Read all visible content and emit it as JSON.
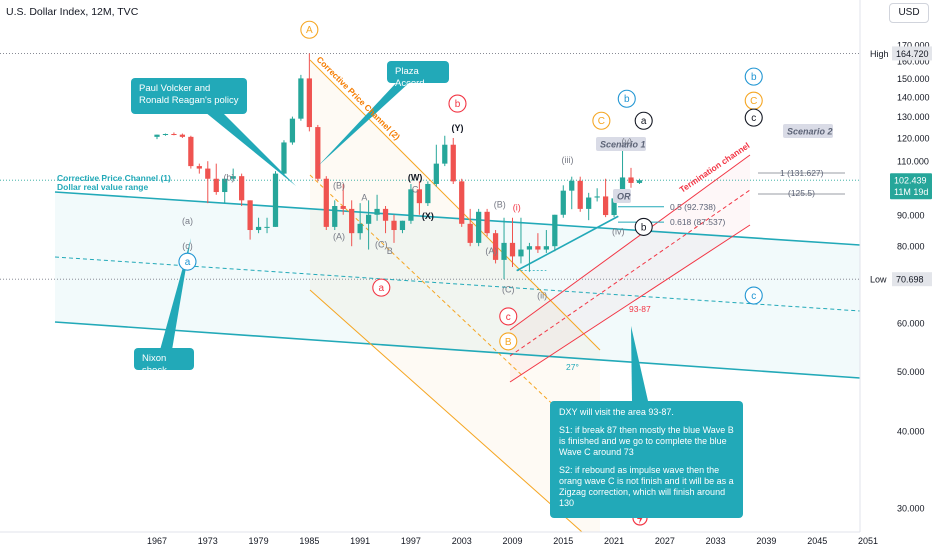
{
  "header": {
    "title": "U.S. Dollar Index, 12M, TVC"
  },
  "currency_button": "USD",
  "price_tags": {
    "high_label": "High",
    "high_value": "164.720",
    "last_value": "102.439",
    "countdown": "11M 19d",
    "low_label": "Low",
    "low_value": "70.698"
  },
  "callouts": {
    "volcker": "Paul Volcker and Ronald Reagan's policy",
    "plaza": "Plaza Accord",
    "nixon": "Nixon shock"
  },
  "analysis_box": {
    "line1": "DXY will visit the area 93-87.",
    "line2": "S1: if break 87 then mostly the blue Wave B is finished and we go to complete the blue Wave C around 73",
    "line3": "S2: if rebound as impulse wave then the orang wave C is not finish and it will be as a Zigzag correction, which will finish around 130"
  },
  "channel_labels": {
    "ch1_line1": "Corrective Price Channel (1)",
    "ch1_line2": "Dollar real value range",
    "ch2": "Corrective Price Channel (2)",
    "termination": "Termination channel"
  },
  "scenarios": {
    "s1": "Scenario 1",
    "s2": "Scenario 2",
    "or": "OR"
  },
  "fib": {
    "f05": "0.5 (92.738)",
    "f0618": "0.618 (87.537)",
    "zone": "93-87",
    "ext1": "1 (131.627)",
    "ext2": "(125.5)",
    "angle": "27°"
  },
  "wave_labels": [
    {
      "text": "A",
      "year": 1985,
      "price": 180,
      "color": "#f5a623",
      "circle": true
    },
    {
      "text": "a",
      "year": 1970.6,
      "price": 75.5,
      "color": "#2196d3",
      "circle": true
    },
    {
      "text": "(a)",
      "year": 1970.6,
      "price": 88,
      "color": "#787b86",
      "circle": false
    },
    {
      "text": "(b)",
      "year": 1975.5,
      "price": 103.5,
      "color": "#787b86",
      "circle": false
    },
    {
      "text": "(c)",
      "year": 1970.6,
      "price": 80,
      "color": "#787b86",
      "circle": false
    },
    {
      "text": "(B)",
      "year": 1988.5,
      "price": 100.5,
      "color": "#787b86",
      "circle": false
    },
    {
      "text": "(A)",
      "year": 1988.5,
      "price": 83,
      "color": "#787b86",
      "circle": false
    },
    {
      "text": "A",
      "year": 1991.5,
      "price": 96,
      "color": "#787b86",
      "circle": false
    },
    {
      "text": "(C)",
      "year": 1993.5,
      "price": 80.5,
      "color": "#787b86",
      "circle": false
    },
    {
      "text": "B",
      "year": 1994.5,
      "price": 78.5,
      "color": "#787b86",
      "circle": false
    },
    {
      "text": "(W)",
      "year": 1997.5,
      "price": 103.5,
      "color": "#131722",
      "circle": false
    },
    {
      "text": "C",
      "year": 1997.5,
      "price": 99,
      "color": "#787b86",
      "circle": false
    },
    {
      "text": "(X)",
      "year": 1999,
      "price": 89.5,
      "color": "#131722",
      "circle": false
    },
    {
      "text": "(Y)",
      "year": 2002.5,
      "price": 124.5,
      "color": "#131722",
      "circle": false
    },
    {
      "text": "b",
      "year": 2002.5,
      "price": 136.5,
      "color": "#f23645",
      "circle": true
    },
    {
      "text": "a",
      "year": 1993.5,
      "price": 68.5,
      "color": "#f23645",
      "circle": true
    },
    {
      "text": "(B)",
      "year": 2007.5,
      "price": 93.5,
      "color": "#787b86",
      "circle": false
    },
    {
      "text": "(A)",
      "year": 2006.5,
      "price": 78.5,
      "color": "#787b86",
      "circle": false
    },
    {
      "text": "(C)",
      "year": 2008.5,
      "price": 68,
      "color": "#787b86",
      "circle": false
    },
    {
      "text": "c",
      "year": 2008.5,
      "price": 61.5,
      "color": "#f23645",
      "circle": true
    },
    {
      "text": "B",
      "year": 2008.5,
      "price": 56,
      "color": "#f5a623",
      "circle": true
    },
    {
      "text": "(i)",
      "year": 2009.5,
      "price": 92.5,
      "color": "#f23645",
      "circle": false
    },
    {
      "text": "(ii)",
      "year": 2012.5,
      "price": 66.5,
      "color": "#787b86",
      "circle": false
    },
    {
      "text": "(iii)",
      "year": 2015.5,
      "price": 110.5,
      "color": "#787b86",
      "circle": false
    },
    {
      "text": "(iv)",
      "year": 2021.5,
      "price": 84.5,
      "color": "#787b86",
      "circle": false
    },
    {
      "text": "(v)",
      "year": 2022.5,
      "price": 118.5,
      "color": "#787b86",
      "circle": false
    },
    {
      "text": "b",
      "year": 2022.5,
      "price": 139,
      "color": "#2196d3",
      "circle": true
    },
    {
      "text": "C",
      "year": 2019.5,
      "price": 128,
      "color": "#f5a623",
      "circle": true
    },
    {
      "text": "a",
      "year": 2024.5,
      "price": 128,
      "color": "#131722",
      "circle": true
    },
    {
      "text": "b",
      "year": 2024.5,
      "price": 86,
      "color": "#131722",
      "circle": true
    },
    {
      "text": "b",
      "year": 2037.5,
      "price": 151,
      "color": "#2196d3",
      "circle": true
    },
    {
      "text": "C",
      "year": 2037.5,
      "price": 138,
      "color": "#f5a623",
      "circle": true
    },
    {
      "text": "c",
      "year": 2037.5,
      "price": 129.5,
      "color": "#131722",
      "circle": true
    },
    {
      "text": "c",
      "year": 2037.5,
      "price": 66.5,
      "color": "#2196d3",
      "circle": true
    }
  ],
  "chart_data": {
    "type": "candlestick",
    "title": "U.S. Dollar Index, 12M, TVC",
    "xlabel": "",
    "ylabel": "",
    "x_ticks": [
      1967,
      1973,
      1979,
      1985,
      1991,
      1997,
      2003,
      2009,
      2015,
      2021,
      2027,
      2033,
      2039,
      2045,
      2051
    ],
    "y_ticks": [
      30,
      40,
      50,
      60,
      70,
      80,
      90,
      100,
      110,
      120,
      130,
      140,
      150,
      160,
      170
    ],
    "y_range": [
      25,
      175
    ],
    "x_range": [
      1962,
      2053
    ],
    "scale": "log",
    "colors": {
      "up": "#26a69a",
      "down": "#ef5350"
    },
    "candles": [
      {
        "year": 1967,
        "o": 120.5,
        "h": 121.5,
        "l": 119.5,
        "c": 121.5
      },
      {
        "year": 1968,
        "o": 121.5,
        "h": 122,
        "l": 121,
        "c": 121.8
      },
      {
        "year": 1969,
        "o": 121.8,
        "h": 122.5,
        "l": 121.2,
        "c": 121.5
      },
      {
        "year": 1970,
        "o": 121.5,
        "h": 122,
        "l": 120,
        "c": 120.5
      },
      {
        "year": 1971,
        "o": 120.5,
        "h": 121,
        "l": 107,
        "c": 108
      },
      {
        "year": 1972,
        "o": 108,
        "h": 109,
        "l": 105,
        "c": 107
      },
      {
        "year": 1973,
        "o": 107,
        "h": 110,
        "l": 94,
        "c": 103
      },
      {
        "year": 1974,
        "o": 103,
        "h": 109,
        "l": 97,
        "c": 98
      },
      {
        "year": 1975,
        "o": 98,
        "h": 103,
        "l": 94,
        "c": 103
      },
      {
        "year": 1976,
        "o": 103,
        "h": 107,
        "l": 102,
        "c": 104
      },
      {
        "year": 1977,
        "o": 104,
        "h": 105,
        "l": 93,
        "c": 95
      },
      {
        "year": 1978,
        "o": 95,
        "h": 95,
        "l": 82,
        "c": 85
      },
      {
        "year": 1979,
        "o": 85,
        "h": 89,
        "l": 84,
        "c": 86
      },
      {
        "year": 1980,
        "o": 86,
        "h": 89,
        "l": 84,
        "c": 86
      },
      {
        "year": 1981,
        "o": 86,
        "h": 106,
        "l": 86,
        "c": 105
      },
      {
        "year": 1982,
        "o": 105,
        "h": 119,
        "l": 104,
        "c": 118
      },
      {
        "year": 1983,
        "o": 118,
        "h": 130,
        "l": 117,
        "c": 129
      },
      {
        "year": 1984,
        "o": 129,
        "h": 152,
        "l": 128,
        "c": 150
      },
      {
        "year": 1985,
        "o": 150,
        "h": 164.72,
        "l": 123,
        "c": 125
      },
      {
        "year": 1986,
        "o": 125,
        "h": 126,
        "l": 102,
        "c": 103
      },
      {
        "year": 1987,
        "o": 103,
        "h": 104,
        "l": 85,
        "c": 86
      },
      {
        "year": 1988,
        "o": 86,
        "h": 95,
        "l": 85,
        "c": 93
      },
      {
        "year": 1989,
        "o": 93,
        "h": 101,
        "l": 90,
        "c": 92
      },
      {
        "year": 1990,
        "o": 92,
        "h": 95,
        "l": 80,
        "c": 84
      },
      {
        "year": 1991,
        "o": 84,
        "h": 94,
        "l": 82,
        "c": 87
      },
      {
        "year": 1992,
        "o": 87,
        "h": 95,
        "l": 79,
        "c": 90
      },
      {
        "year": 1993,
        "o": 90,
        "h": 97,
        "l": 88,
        "c": 92
      },
      {
        "year": 1994,
        "o": 92,
        "h": 93,
        "l": 84,
        "c": 88
      },
      {
        "year": 1995,
        "o": 88,
        "h": 90,
        "l": 81,
        "c": 85
      },
      {
        "year": 1996,
        "o": 85,
        "h": 88,
        "l": 84,
        "c": 88
      },
      {
        "year": 1997,
        "o": 88,
        "h": 101,
        "l": 87,
        "c": 99
      },
      {
        "year": 1998,
        "o": 99,
        "h": 102,
        "l": 90,
        "c": 94
      },
      {
        "year": 1999,
        "o": 94,
        "h": 102,
        "l": 93,
        "c": 101
      },
      {
        "year": 2000,
        "o": 101,
        "h": 117,
        "l": 100,
        "c": 109
      },
      {
        "year": 2001,
        "o": 109,
        "h": 121,
        "l": 108,
        "c": 117
      },
      {
        "year": 2002,
        "o": 117,
        "h": 120,
        "l": 101,
        "c": 102
      },
      {
        "year": 2003,
        "o": 102,
        "h": 103,
        "l": 86,
        "c": 87
      },
      {
        "year": 2004,
        "o": 87,
        "h": 92,
        "l": 80,
        "c": 81
      },
      {
        "year": 2005,
        "o": 81,
        "h": 92,
        "l": 80,
        "c": 91
      },
      {
        "year": 2006,
        "o": 91,
        "h": 92,
        "l": 83,
        "c": 84
      },
      {
        "year": 2007,
        "o": 84,
        "h": 85,
        "l": 75,
        "c": 76
      },
      {
        "year": 2008,
        "o": 76,
        "h": 89,
        "l": 70.698,
        "c": 81
      },
      {
        "year": 2009,
        "o": 81,
        "h": 89,
        "l": 74,
        "c": 77
      },
      {
        "year": 2010,
        "o": 77,
        "h": 89,
        "l": 75,
        "c": 79
      },
      {
        "year": 2011,
        "o": 79,
        "h": 81,
        "l": 72.7,
        "c": 80
      },
      {
        "year": 2012,
        "o": 80,
        "h": 84,
        "l": 78,
        "c": 79
      },
      {
        "year": 2013,
        "o": 79,
        "h": 85,
        "l": 78,
        "c": 80
      },
      {
        "year": 2014,
        "o": 80,
        "h": 90,
        "l": 78.5,
        "c": 90
      },
      {
        "year": 2015,
        "o": 90,
        "h": 100.5,
        "l": 89,
        "c": 98.5
      },
      {
        "year": 2016,
        "o": 98.5,
        "h": 103.8,
        "l": 91.9,
        "c": 102.2
      },
      {
        "year": 2017,
        "o": 102.2,
        "h": 103.8,
        "l": 91,
        "c": 92
      },
      {
        "year": 2018,
        "o": 92,
        "h": 97.7,
        "l": 88.2,
        "c": 96
      },
      {
        "year": 2019,
        "o": 96,
        "h": 99.4,
        "l": 94.6,
        "c": 96.4
      },
      {
        "year": 2020,
        "o": 96.4,
        "h": 103,
        "l": 89.2,
        "c": 89.9
      },
      {
        "year": 2021,
        "o": 89.9,
        "h": 96.9,
        "l": 89.2,
        "c": 95.7
      },
      {
        "year": 2022,
        "o": 95.7,
        "h": 114.8,
        "l": 94.6,
        "c": 103.5
      },
      {
        "year": 2023,
        "o": 103.5,
        "h": 107.3,
        "l": 99.6,
        "c": 101.4
      },
      {
        "year": 2024,
        "o": 101.4,
        "h": 103,
        "l": 101,
        "c": 102.439
      }
    ]
  }
}
